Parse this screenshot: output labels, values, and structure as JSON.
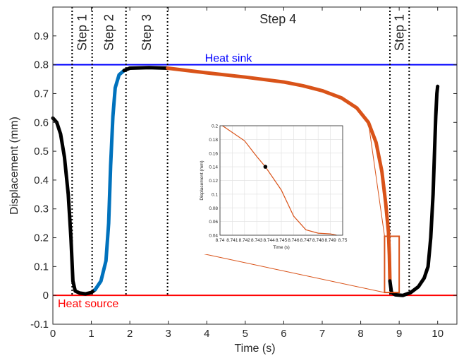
{
  "chart_data": [
    {
      "type": "line",
      "xlabel": "Time (s)",
      "ylabel": "Displacement (mm)",
      "xlim": [
        0,
        10.5
      ],
      "ylim": [
        -0.1,
        1.0
      ],
      "xticks": [
        0,
        1,
        2,
        3,
        4,
        5,
        6,
        7,
        8,
        9,
        10
      ],
      "yticks": [
        -0.1,
        0,
        0.1,
        0.2,
        0.3,
        0.4,
        0.5,
        0.6,
        0.7,
        0.8,
        0.9
      ],
      "grid": false,
      "reference_lines": [
        {
          "label": "Heat sink",
          "y": 0.8,
          "color": "#0000ff"
        },
        {
          "label": "Heat source",
          "y": 0.0,
          "color": "#ff0000"
        }
      ],
      "step_boundaries": [
        0.5,
        1.02,
        1.9,
        2.98,
        8.76,
        9.26
      ],
      "step_labels": [
        {
          "text": "Step 1",
          "x": 0.76
        },
        {
          "text": "Step 2",
          "x": 1.46
        },
        {
          "text": "Step 3",
          "x": 2.44
        },
        {
          "text": "Step 4",
          "x": 5.85
        },
        {
          "text": "Step 1",
          "x": 9.01
        }
      ],
      "series": [
        {
          "color": "#000000",
          "points": [
            [
              0,
              0.615
            ],
            [
              0.1,
              0.6
            ],
            [
              0.2,
              0.56
            ],
            [
              0.3,
              0.48
            ],
            [
              0.4,
              0.35
            ],
            [
              0.47,
              0.2
            ],
            [
              0.52,
              0.05
            ],
            [
              0.58,
              0.015
            ],
            [
              0.7,
              0.008
            ],
            [
              0.85,
              0.005
            ],
            [
              1.0,
              0.01
            ],
            [
              1.1,
              0.02
            ]
          ]
        },
        {
          "color": "#0072bd",
          "points": [
            [
              1.1,
              0.02
            ],
            [
              1.25,
              0.05
            ],
            [
              1.38,
              0.12
            ],
            [
              1.45,
              0.25
            ],
            [
              1.5,
              0.45
            ],
            [
              1.56,
              0.62
            ],
            [
              1.62,
              0.72
            ],
            [
              1.72,
              0.765
            ],
            [
              1.85,
              0.78
            ]
          ]
        },
        {
          "color": "#000000",
          "points": [
            [
              1.85,
              0.78
            ],
            [
              2.0,
              0.788
            ],
            [
              2.5,
              0.79
            ],
            [
              2.98,
              0.788
            ]
          ]
        },
        {
          "color": "#d95319",
          "points": [
            [
              2.98,
              0.788
            ],
            [
              4.0,
              0.772
            ],
            [
              5.0,
              0.757
            ],
            [
              6.0,
              0.74
            ],
            [
              6.5,
              0.727
            ],
            [
              7.0,
              0.71
            ],
            [
              7.5,
              0.685
            ],
            [
              7.9,
              0.65
            ],
            [
              8.2,
              0.6
            ],
            [
              8.4,
              0.53
            ],
            [
              8.55,
              0.43
            ],
            [
              8.65,
              0.32
            ],
            [
              8.72,
              0.22
            ],
            [
              8.745,
              0.14
            ],
            [
              8.76,
              0.05
            ]
          ]
        },
        {
          "color": "#000000",
          "points": [
            [
              8.76,
              0.05
            ],
            [
              8.8,
              0.01
            ],
            [
              8.9,
              0.002
            ],
            [
              9.1,
              0.0
            ],
            [
              9.3,
              0.01
            ],
            [
              9.5,
              0.03
            ],
            [
              9.65,
              0.06
            ],
            [
              9.75,
              0.1
            ],
            [
              9.82,
              0.2
            ],
            [
              9.88,
              0.35
            ],
            [
              9.92,
              0.5
            ],
            [
              9.95,
              0.62
            ],
            [
              9.98,
              0.7
            ],
            [
              10.0,
              0.725
            ]
          ]
        }
      ],
      "zoom_box": {
        "x": [
          8.74,
          8.75
        ],
        "y": [
          0.01,
          0.205
        ],
        "color": "#d95319"
      }
    },
    {
      "type": "line",
      "xlabel": "Time (s)",
      "ylabel": "Displacement (mm)",
      "xlim": [
        8.74,
        8.75
      ],
      "ylim": [
        0.04,
        0.2
      ],
      "xticks": [
        8.74,
        8.741,
        8.742,
        8.743,
        8.744,
        8.745,
        8.746,
        8.747,
        8.748,
        8.749,
        8.75
      ],
      "yticks": [
        0.04,
        0.06,
        0.08,
        0.1,
        0.12,
        0.14,
        0.16,
        0.18,
        0.2
      ],
      "grid": true,
      "series": [
        {
          "color": "#d95319",
          "points": [
            [
              8.7402,
              0.2
            ],
            [
              8.742,
              0.178
            ],
            [
              8.743,
              0.155
            ],
            [
              8.7437,
              0.14
            ],
            [
              8.745,
              0.106
            ],
            [
              8.746,
              0.068
            ],
            [
              8.747,
              0.048
            ],
            [
              8.748,
              0.043
            ],
            [
              8.749,
              0.042
            ],
            [
              8.7495,
              0.04
            ]
          ]
        }
      ],
      "highlight_point": [
        8.7437,
        0.14
      ]
    }
  ]
}
